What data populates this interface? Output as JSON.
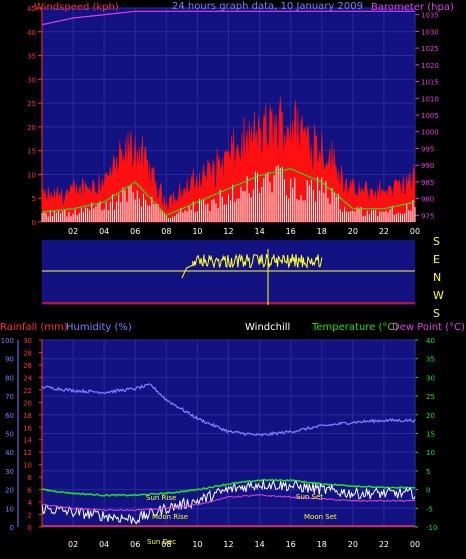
{
  "title": "24 hours graph data, 10 January 2009",
  "colors": {
    "background": "#000000",
    "plot_bg": "#121282",
    "wind_gust": "#ff1010",
    "wind_avg": "#ffffff",
    "barometer": "#e040e0",
    "wind_dir": "#ffff30",
    "humidity": "#7e7eff",
    "temperature": "#20e020",
    "dew_point": "#ffffff",
    "rain": "#ff3030",
    "axis_left": "#ff3030",
    "axis_temp": "#20e020",
    "sun": "#ffff30"
  },
  "time_ticks": [
    "02",
    "04",
    "06",
    "08",
    "10",
    "12",
    "14",
    "16",
    "18",
    "20",
    "22",
    "00"
  ],
  "panel_top": {
    "left_label": "Windspeed (kph)",
    "right_label": "Barometer (hpa)",
    "left_ticks": [
      "0",
      "5",
      "10",
      "15",
      "20",
      "25",
      "30",
      "35",
      "40",
      "45"
    ],
    "right_ticks": [
      "975",
      "980",
      "985",
      "990",
      "995",
      "1000",
      "1005",
      "1010",
      "1015",
      "1020",
      "1025",
      "1030",
      "1035"
    ]
  },
  "panel_mid": {
    "dir_labels": [
      "S",
      "E",
      "N",
      "W",
      "S"
    ]
  },
  "panel_bottom": {
    "label_rain": "Rainfall (mm)",
    "label_humidity": "Humidity (%)",
    "label_windchill": "Windchill",
    "label_temp": "Temperature (°C)",
    "label_dew": "Dew Point (°C)",
    "humidity_ticks": [
      "0",
      "10",
      "20",
      "30",
      "40",
      "50",
      "60",
      "70",
      "80",
      "90",
      "100"
    ],
    "rain_ticks": [
      "0",
      "2",
      "4",
      "6",
      "8",
      "10",
      "12",
      "14",
      "16",
      "18",
      "20",
      "22",
      "24",
      "26",
      "28",
      "30"
    ],
    "temp_ticks": [
      "-10",
      "-5",
      "0",
      "5",
      "10",
      "15",
      "20",
      "25",
      "30",
      "35",
      "40"
    ],
    "sun_rise": "Sun Rise",
    "sun_set": "Sun Set",
    "moon_rise": "Moon Rise",
    "moon_set": "Moon Set",
    "sun_dec": "Sun Dec"
  },
  "chart_data": [
    {
      "type": "line",
      "title": "24 hours graph data, 10 January 2009",
      "xlabel": "",
      "ylabel": "Windspeed (kph)",
      "ylim": [
        0,
        45
      ],
      "x": [
        "00",
        "02",
        "04",
        "06",
        "08",
        "10",
        "12",
        "14",
        "16",
        "18",
        "20",
        "22",
        "00"
      ],
      "series": [
        {
          "name": "Windspeed (kph)",
          "values": [
            3,
            4,
            6,
            12,
            2,
            6,
            10,
            14,
            16,
            12,
            4,
            4,
            6
          ]
        }
      ]
    },
    {
      "type": "line",
      "ylabel": "Barometer (hpa)",
      "ylim": [
        975,
        1035
      ],
      "x": [
        "00",
        "02",
        "04",
        "06",
        "08",
        "10",
        "12",
        "14",
        "16",
        "18",
        "20",
        "22",
        "00"
      ],
      "series": [
        {
          "name": "Barometer (hpa)",
          "values": [
            1032,
            1034,
            1035,
            1036,
            1036,
            1036,
            1036,
            1036,
            1036,
            1036,
            1036,
            1036,
            1036
          ]
        }
      ]
    },
    {
      "type": "line",
      "ylabel": "Humidity (%)",
      "ylim": [
        0,
        100
      ],
      "x": [
        "00",
        "02",
        "04",
        "06",
        "07",
        "08",
        "10",
        "12",
        "14",
        "16",
        "18",
        "20",
        "22",
        "00"
      ],
      "series": [
        {
          "name": "Humidity (%)",
          "values": [
            75,
            73,
            72,
            74,
            76,
            68,
            58,
            51,
            49,
            51,
            54,
            56,
            57,
            57
          ]
        }
      ]
    },
    {
      "type": "line",
      "ylabel": "Temperature (°C)",
      "ylim": [
        -10,
        40
      ],
      "x": [
        "00",
        "02",
        "04",
        "06",
        "08",
        "10",
        "12",
        "14",
        "16",
        "18",
        "20",
        "22",
        "00"
      ],
      "series": [
        {
          "name": "Temperature (°C)",
          "values": [
            0,
            -1,
            -1.5,
            -1.5,
            -1,
            0,
            1.5,
            2.5,
            2.5,
            1.5,
            1,
            0.5,
            0.5
          ]
        },
        {
          "name": "Windchill",
          "values": [
            -5,
            -6,
            -7,
            -8,
            -5,
            -3,
            0,
            1.5,
            1,
            0,
            -1,
            -1,
            -1
          ]
        },
        {
          "name": "Dew Point (°C)",
          "values": [
            -4,
            -5,
            -5.5,
            -5.5,
            -5,
            -4,
            -2,
            -1.5,
            -2,
            -2.5,
            -3,
            -3,
            -3
          ]
        }
      ]
    },
    {
      "type": "line",
      "ylabel": "Rainfall (mm)",
      "ylim": [
        0,
        30
      ],
      "x": [
        "00",
        "24"
      ],
      "series": [
        {
          "name": "Rainfall (mm)",
          "values": [
            0,
            0
          ]
        }
      ]
    }
  ]
}
